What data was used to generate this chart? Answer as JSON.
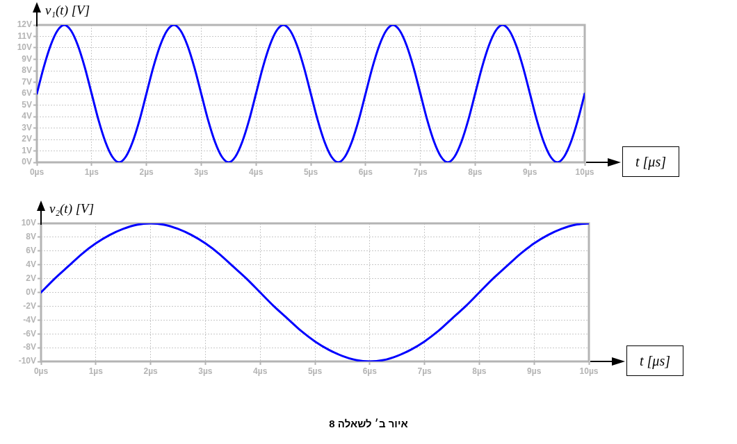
{
  "chart_data": [
    {
      "type": "line",
      "xlabel": "t [μs]",
      "ylabel": "v₁(t) [V]",
      "grid": true,
      "marker": "none",
      "x": [
        0,
        0.125,
        0.25,
        0.375,
        0.5,
        0.625,
        0.75,
        0.875,
        1,
        1.125,
        1.25,
        1.375,
        1.5,
        1.625,
        1.75,
        1.875,
        2,
        2.125,
        2.25,
        2.375,
        2.5,
        2.625,
        2.75,
        2.875,
        3,
        3.125,
        3.25,
        3.375,
        3.5,
        3.625,
        3.75,
        3.875,
        4,
        4.125,
        4.25,
        4.375,
        4.5,
        4.625,
        4.75,
        4.875,
        5,
        5.125,
        5.25,
        5.375,
        5.5,
        5.625,
        5.75,
        5.875,
        6,
        6.125,
        6.25,
        6.375,
        6.5,
        6.625,
        6.75,
        6.875,
        7,
        7.125,
        7.25,
        7.375,
        7.5,
        7.625,
        7.75,
        7.875,
        8,
        8.125,
        8.25,
        8.375,
        8.5,
        8.625,
        8.75,
        8.875,
        9,
        9.125,
        9.25,
        9.375,
        9.5,
        9.625,
        9.75,
        9.875,
        10
      ],
      "series": [
        {
          "color": "#0000ff",
          "values": [
            6,
            8.3,
            10.2,
            11.5,
            12,
            11.5,
            10.2,
            8.3,
            6,
            3.7,
            1.8,
            0.5,
            0,
            0.5,
            1.8,
            3.7,
            6,
            8.3,
            10.2,
            11.5,
            12,
            11.5,
            10.2,
            8.3,
            6,
            3.7,
            1.8,
            0.5,
            0,
            0.5,
            1.8,
            3.7,
            6,
            8.3,
            10.2,
            11.5,
            12,
            11.5,
            10.2,
            8.3,
            6,
            3.7,
            1.8,
            0.5,
            0,
            0.5,
            1.8,
            3.7,
            6,
            8.3,
            10.2,
            11.5,
            12,
            11.5,
            10.2,
            8.3,
            6,
            3.7,
            1.8,
            0.5,
            0,
            0.5,
            1.8,
            3.7,
            6,
            8.3,
            10.2,
            11.5,
            12,
            11.5,
            10.2,
            8.3,
            6,
            3.7,
            1.8,
            0.5,
            0,
            0.5,
            1.8,
            3.7,
            6
          ]
        }
      ],
      "xlim": [
        0,
        10
      ],
      "ylim": [
        0,
        12
      ],
      "xticks": [
        {
          "value": 0,
          "label": "0µs"
        },
        {
          "value": 1,
          "label": "1µs"
        },
        {
          "value": 2,
          "label": "2µs"
        },
        {
          "value": 3,
          "label": "3µs"
        },
        {
          "value": 4,
          "label": "4µs"
        },
        {
          "value": 5,
          "label": "5µs"
        },
        {
          "value": 6,
          "label": "6µs"
        },
        {
          "value": 7,
          "label": "7µs"
        },
        {
          "value": 8,
          "label": "8µs"
        },
        {
          "value": 9,
          "label": "9µs"
        },
        {
          "value": 10,
          "label": "10µs"
        }
      ],
      "yticks": [
        {
          "value": 0,
          "label": "0V"
        },
        {
          "value": 1,
          "label": "1V"
        },
        {
          "value": 2,
          "label": "2V"
        },
        {
          "value": 3,
          "label": "3V"
        },
        {
          "value": 4,
          "label": "4V"
        },
        {
          "value": 5,
          "label": "5V"
        },
        {
          "value": 6,
          "label": "6V"
        },
        {
          "value": 7,
          "label": "7V"
        },
        {
          "value": 8,
          "label": "8V"
        },
        {
          "value": 9,
          "label": "9V"
        },
        {
          "value": 10,
          "label": "10V"
        },
        {
          "value": 11,
          "label": "11V"
        },
        {
          "value": 12,
          "label": "12V"
        }
      ]
    },
    {
      "type": "line",
      "xlabel": "t [μs]",
      "ylabel": "v₂(t) [V]",
      "grid": true,
      "marker": "none",
      "x": [
        0,
        0.25,
        0.5,
        0.75,
        1,
        1.25,
        1.5,
        1.75,
        2,
        2.25,
        2.5,
        2.75,
        3,
        3.25,
        3.5,
        3.75,
        4,
        4.25,
        4.5,
        4.75,
        5,
        5.25,
        5.5,
        5.75,
        6,
        6.25,
        6.5,
        6.75,
        7,
        7.25,
        7.5,
        7.75,
        8,
        8.25,
        8.5,
        8.75,
        9,
        9.25,
        9.5,
        9.75,
        10
      ],
      "series": [
        {
          "color": "#0000ff",
          "values": [
            0,
            2.0,
            3.8,
            5.6,
            7.1,
            8.3,
            9.2,
            9.8,
            10,
            9.8,
            9.2,
            8.3,
            7.1,
            5.6,
            3.8,
            2.0,
            0,
            -2.0,
            -3.8,
            -5.6,
            -7.1,
            -8.3,
            -9.2,
            -9.8,
            -10,
            -9.8,
            -9.2,
            -8.3,
            -7.1,
            -5.6,
            -3.8,
            -2.0,
            0,
            2.0,
            3.8,
            5.6,
            7.1,
            8.3,
            9.2,
            9.8,
            10
          ]
        }
      ],
      "xlim": [
        0,
        10
      ],
      "ylim": [
        -10,
        10
      ],
      "xticks": [
        {
          "value": 0,
          "label": "0µs"
        },
        {
          "value": 1,
          "label": "1µs"
        },
        {
          "value": 2,
          "label": "2µs"
        },
        {
          "value": 3,
          "label": "3µs"
        },
        {
          "value": 4,
          "label": "4µs"
        },
        {
          "value": 5,
          "label": "5µs"
        },
        {
          "value": 6,
          "label": "6µs"
        },
        {
          "value": 7,
          "label": "7µs"
        },
        {
          "value": 8,
          "label": "8µs"
        },
        {
          "value": 9,
          "label": "9µs"
        },
        {
          "value": 10,
          "label": "10µs"
        }
      ],
      "yticks": [
        {
          "value": -10,
          "label": "-10V"
        },
        {
          "value": -8,
          "label": "-8V"
        },
        {
          "value": -6,
          "label": "-6V"
        },
        {
          "value": -4,
          "label": "-4V"
        },
        {
          "value": -2,
          "label": "-2V"
        },
        {
          "value": 0,
          "label": "0V"
        },
        {
          "value": 2,
          "label": "2V"
        },
        {
          "value": 4,
          "label": "4V"
        },
        {
          "value": 6,
          "label": "6V"
        },
        {
          "value": 8,
          "label": "8V"
        },
        {
          "value": 10,
          "label": "10V"
        }
      ],
      "annotations": [
        "איור ב׳ לשאלה 8"
      ]
    }
  ]
}
